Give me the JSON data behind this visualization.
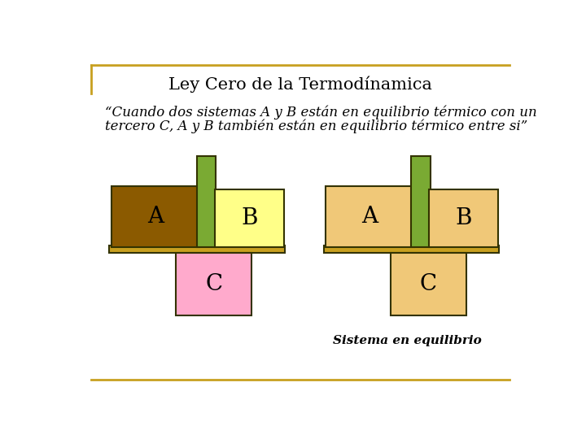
{
  "title": "Ley Cero de la Termodínamica",
  "subtitle_line1": "“Cuando dos sistemas A y B están en equilibrio térmico con un",
  "subtitle_line2": "tercero C, A y B también están en equilibrio térmico entre si”",
  "footer": "Sistema en equilibrio",
  "bg_color": "#ffffff",
  "border_color": "#c8a020",
  "color_A_left": "#8b5a00",
  "color_B_left": "#ffff88",
  "color_C_left": "#ffaacc",
  "color_thermometer": "#7aaa33",
  "color_shelf": "#c8a020",
  "color_A_right": "#f0c878",
  "color_B_right": "#f0c878",
  "color_C_right": "#f0c878"
}
